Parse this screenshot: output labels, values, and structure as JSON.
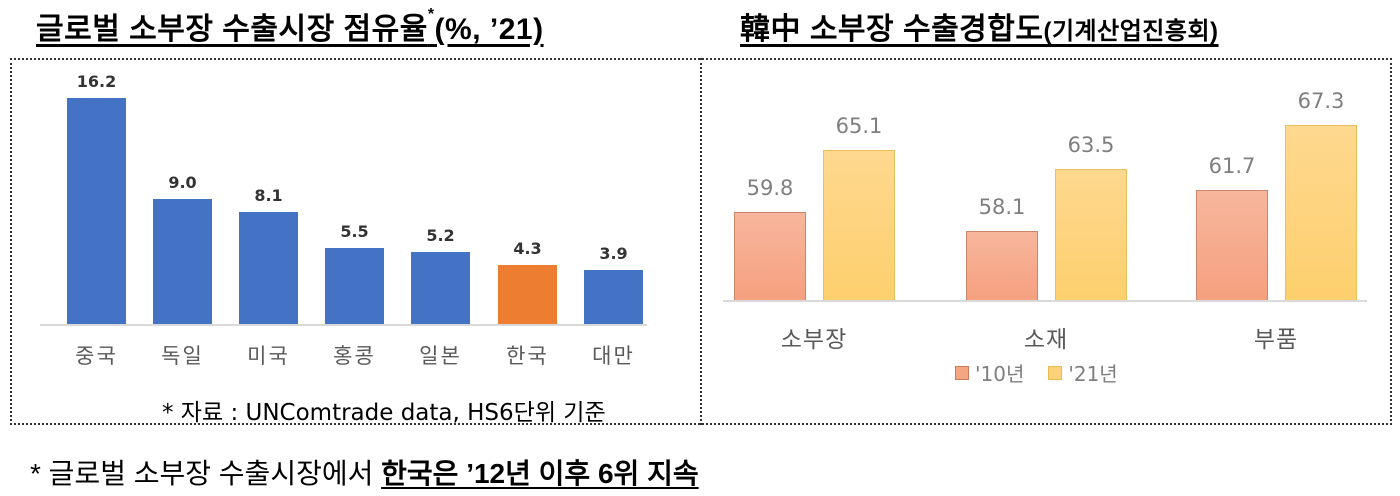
{
  "left_panel": {
    "title_main": "글로벌 소부장 수출시장 점유율",
    "title_sup": "*",
    "title_suffix": "(%, ’21)",
    "footnote": "* 자료 : UNComtrade data, HS6단위 기준"
  },
  "right_panel": {
    "title_main": "韓中 소부장 수출경합도",
    "title_suffix": "(기계산업진흥회)",
    "legend": [
      {
        "label": "'10년",
        "color": "#f4a582"
      },
      {
        "label": "'21년",
        "color": "#fdd27a"
      }
    ]
  },
  "bottom_note": {
    "prefix": "* 글로벌 소부장 수출시장에서 ",
    "emphasis": "한국은 ’12년 이후 6위 지속"
  },
  "colors": {
    "bar_blue": "#4472c4",
    "bar_highlight_orange": "#ed7d31",
    "bar_2010": "#f4a582",
    "bar_2021": "#fdd27a",
    "value_label_gray": "#7f7f7f"
  },
  "chart_data": [
    {
      "type": "bar",
      "title": "글로벌 소부장 수출시장 점유율* (%, ’21)",
      "xlabel": "",
      "ylabel": "",
      "categories": [
        "중국",
        "독일",
        "미국",
        "홍콩",
        "일본",
        "한국",
        "대만"
      ],
      "values": [
        16.2,
        9.0,
        8.1,
        5.5,
        5.2,
        4.3,
        3.9
      ],
      "value_labels": [
        "16.2",
        "9.0",
        "8.1",
        "5.5",
        "5.2",
        "4.3",
        "3.9"
      ],
      "highlight": "한국",
      "ylim": [
        0,
        17
      ],
      "grid": false,
      "legend": null,
      "annotation": "* 자료 : UNComtrade data, HS6단위 기준"
    },
    {
      "type": "bar",
      "title": "韓中 소부장 수출경합도 (기계산업진흥회)",
      "xlabel": "",
      "ylabel": "",
      "categories": [
        "소부장",
        "소재",
        "부품"
      ],
      "series": [
        {
          "name": "'10년",
          "values": [
            59.8,
            58.1,
            61.7
          ],
          "value_labels": [
            "59.8",
            "58.1",
            "61.7"
          ]
        },
        {
          "name": "'21년",
          "values": [
            65.1,
            63.5,
            67.3
          ],
          "value_labels": [
            "65.1",
            "63.5",
            "67.3"
          ]
        }
      ],
      "ylim": [
        52,
        70
      ],
      "grid": false,
      "legend_position": "bottom"
    }
  ]
}
